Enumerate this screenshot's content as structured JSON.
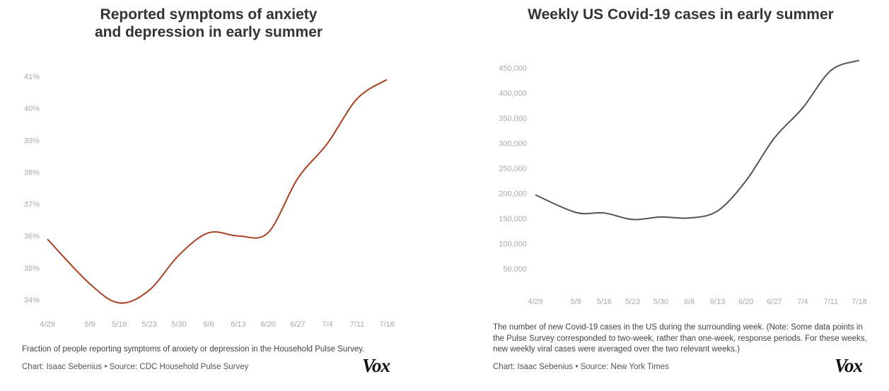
{
  "chart_data": [
    {
      "type": "line",
      "title": "Reported symptoms of anxiety and depression in early summer",
      "title_lines": [
        "Reported symptoms of anxiety",
        "and depression in early summer"
      ],
      "x": [
        "4/29",
        "5/9",
        "5/16",
        "5/23",
        "5/30",
        "6/6",
        "6/13",
        "6/20",
        "6/27",
        "7/4",
        "7/11",
        "7/18"
      ],
      "series": [
        {
          "values": [
            35.9,
            34.5,
            33.9,
            34.3,
            35.4,
            36.1,
            36.0,
            36.1,
            37.8,
            38.9,
            40.3,
            40.9
          ],
          "color": "#a8401f"
        }
      ],
      "yticks": [
        "34%",
        "35%",
        "36%",
        "37%",
        "38%",
        "39%",
        "40%",
        "41%"
      ],
      "ytick_values": [
        34,
        35,
        36,
        37,
        38,
        39,
        40,
        41
      ],
      "ylim": [
        34,
        41
      ],
      "grid": false,
      "note": "Fraction of people reporting symptoms of anxiety or depression in the Household Pulse Survey.",
      "credit": "Chart: Isaac Sebenius • Source: CDC Household Pulse Survey",
      "logo": "Vox"
    },
    {
      "type": "line",
      "title": "Weekly US Covid-19 cases in early summer",
      "title_lines": [
        "Weekly US Covid-19 cases in early summer"
      ],
      "x": [
        "4/29",
        "5/9",
        "5/16",
        "5/23",
        "5/30",
        "6/6",
        "6/13",
        "6/20",
        "6/27",
        "7/4",
        "7/11",
        "7/18"
      ],
      "series": [
        {
          "values": [
            197000,
            162000,
            161000,
            148000,
            153000,
            151000,
            165000,
            225000,
            310000,
            370000,
            445000,
            465000
          ],
          "color": "#555555"
        }
      ],
      "yticks": [
        "50,000",
        "100,000",
        "150,000",
        "200,000",
        "250,000",
        "300,000",
        "350,000",
        "400,000",
        "450,000"
      ],
      "ytick_values": [
        50000,
        100000,
        150000,
        200000,
        250000,
        300000,
        350000,
        400000,
        450000
      ],
      "ylim": [
        50000,
        450000
      ],
      "grid": false,
      "note": "The number of new Covid-19 cases in the US during the surrounding week. (Note: Some data points in the Pulse Survey corresponded to two-week, rather than one-week, response periods. For these weeks, new weekly viral cases were averaged over the two relevant weeks.)",
      "credit": "Chart: Isaac Sebenius • Source: New York Times",
      "logo": "Vox"
    }
  ]
}
